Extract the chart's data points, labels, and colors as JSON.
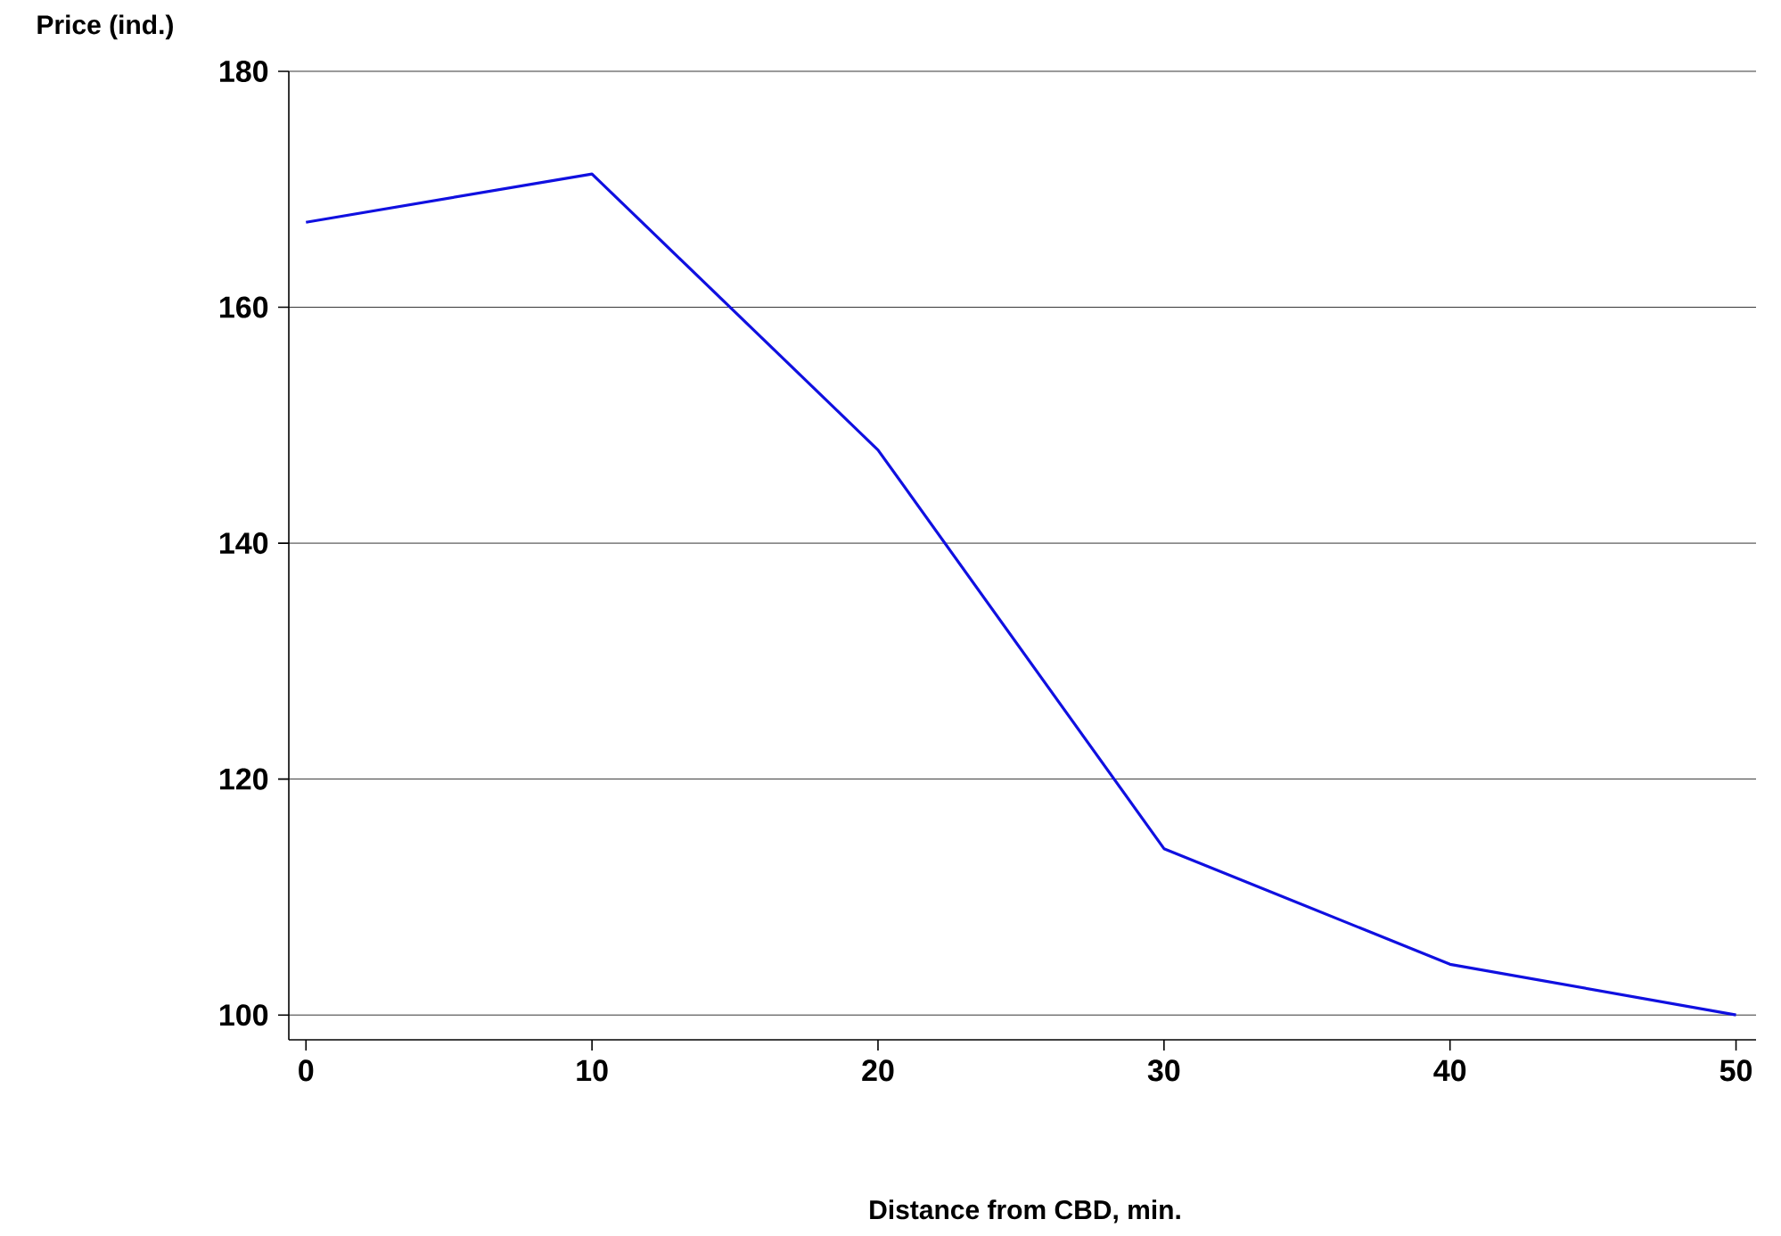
{
  "chart_data": {
    "type": "line",
    "ylabel": "Price (ind.)",
    "xlabel": "Distance from CBD, min.",
    "x": [
      0,
      10,
      20,
      30,
      40,
      50
    ],
    "series": [
      {
        "color": "#1010e0",
        "values": [
          167.2,
          171.3,
          147.9,
          114.1,
          104.3,
          100
        ]
      }
    ],
    "xlim": [
      -0.6,
      50.7
    ],
    "ylim": [
      97.9,
      180
    ],
    "xticks": [
      0,
      10,
      20,
      30,
      40,
      50
    ],
    "yticks": [
      100,
      120,
      140,
      160,
      180
    ],
    "grid": "y",
    "marker": "none",
    "line_style": "solid"
  }
}
